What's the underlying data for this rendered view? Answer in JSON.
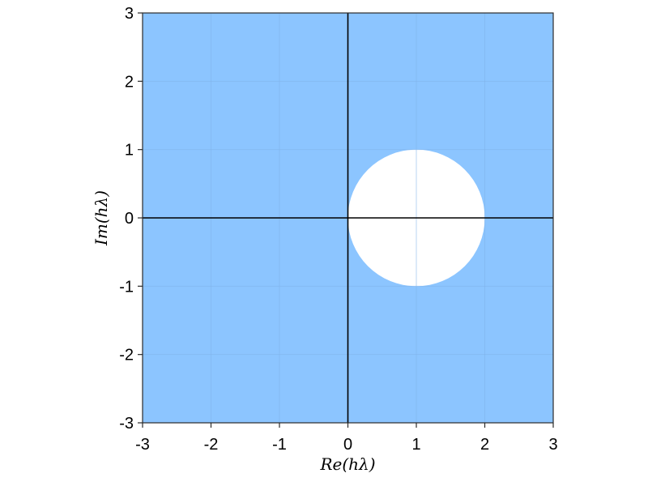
{
  "chart_data": {
    "type": "area",
    "xlabel": "Re(hλ)",
    "ylabel": "Im(hλ)",
    "xlim": [
      -3,
      3
    ],
    "ylim": [
      -3,
      3
    ],
    "x_ticks": [
      -3,
      -2,
      -1,
      0,
      1,
      2,
      3
    ],
    "y_ticks": [
      -3,
      -2,
      -1,
      0,
      1,
      2,
      3
    ],
    "x_tick_labels": [
      "-3",
      "-2",
      "-1",
      "0",
      "1",
      "2",
      "3"
    ],
    "y_tick_labels": [
      "-3",
      "-2",
      "-1",
      "0",
      "1",
      "2",
      "3"
    ],
    "grid": true,
    "aspect": "equal",
    "shaded_region": {
      "description": "filled everywhere except the open disk",
      "excluded_disk": {
        "center": [
          1,
          0
        ],
        "radius": 1
      }
    },
    "reference_lines": {
      "x": 0,
      "y": 0
    },
    "colors": {
      "fill": "#8cc5ff",
      "excluded": "#ffffff",
      "grid": "#7fb3ea",
      "axes": "#000000",
      "frame": "#2b2b2b"
    }
  }
}
